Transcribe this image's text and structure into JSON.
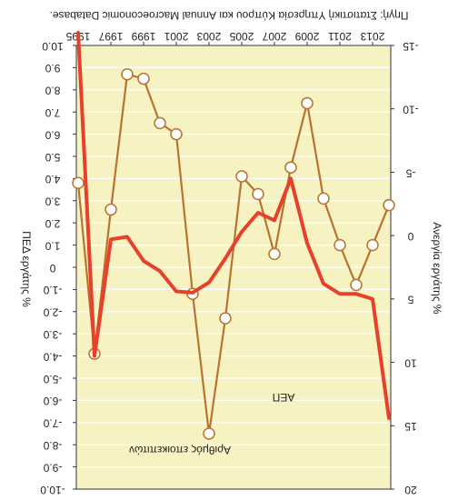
{
  "chart_data": {
    "type": "line",
    "orientation": "rotated-180",
    "source": "Πηγή: Στατιστική Υπηρεσία Κύπρου και Annual Macroeconomic Database.",
    "x": [
      1995,
      1996,
      1997,
      1998,
      1999,
      2000,
      2001,
      2002,
      2003,
      2004,
      2005,
      2006,
      2007,
      2008,
      2009,
      2010,
      2011,
      2012,
      2013,
      2014
    ],
    "x_tick_labels": [
      "1995",
      "1997",
      "1999",
      "2001",
      "2003",
      "2005",
      "2007",
      "2009",
      "2011",
      "2013"
    ],
    "left_axis": {
      "label": "ΠΕΔ εργάτης %",
      "range": [
        -10.0,
        10.0
      ],
      "tick_labels": [
        "-10.0",
        "-9.0",
        "-8.0",
        "-7.0",
        "-6.0",
        "-5.0",
        "-4.0",
        "-3.0",
        "-2.0",
        "-1.0",
        "0",
        "1.0",
        "2.0",
        "3.0",
        "4.0",
        "5.0",
        "6.0",
        "7.0",
        "8.0",
        "9.0",
        "10.0"
      ]
    },
    "right_axis": {
      "label": "Ανεργία εργάτης %",
      "range": [
        -15,
        20
      ],
      "tick_labels": [
        "-15",
        "-10",
        "-5",
        "0",
        "5",
        "10",
        "15",
        "20"
      ]
    },
    "series": [
      {
        "name": "Αριθμός εποικεπιτών",
        "axis": "left",
        "color": "#b8742f",
        "marker": "open-circle",
        "values": [
          3.8,
          -3.9,
          2.6,
          8.7,
          8.5,
          6.5,
          6.0,
          -1.2,
          -7.5,
          -2.3,
          4.1,
          3.3,
          0.6,
          4.5,
          7.4,
          3.1,
          1.0,
          -0.8,
          1.0,
          2.8
        ]
      },
      {
        "name": "ΑΕΠ",
        "axis": "right",
        "color": "#e8402a",
        "marker": "none",
        "values": [
          -16,
          9.5,
          0.3,
          0.1,
          2.0,
          2.8,
          4.4,
          4.5,
          3.7,
          1.8,
          -0.3,
          -1.8,
          -1.2,
          -4.5,
          0.6,
          3.8,
          4.6,
          4.6,
          5.0,
          14.4
        ]
      }
    ]
  }
}
